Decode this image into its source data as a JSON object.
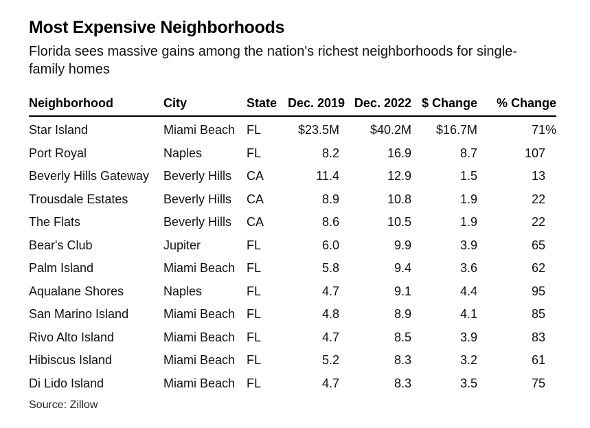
{
  "title": "Most Expensive Neighborhoods",
  "subtitle": "Florida sees massive gains among the nation's richest neighborhoods for single-family homes",
  "source": "Source: Zillow",
  "chart_data": {
    "type": "table",
    "title": "Most Expensive Neighborhoods",
    "subtitle": "Florida sees massive gains among the nation's richest neighborhoods for single-family homes",
    "columns": [
      "Neighborhood",
      "City",
      "State",
      "Dec. 2019",
      "Dec. 2022",
      "$ Change",
      "% Change"
    ],
    "rows": [
      [
        "Star Island",
        "Miami Beach",
        "FL",
        "$23.5M",
        "$40.2M",
        "$16.7M",
        "71%"
      ],
      [
        "Port Royal",
        "Naples",
        "FL",
        "8.2",
        "16.9",
        "8.7",
        "107"
      ],
      [
        "Beverly Hills Gateway",
        "Beverly Hills",
        "CA",
        "11.4",
        "12.9",
        "1.5",
        "13"
      ],
      [
        "Trousdale Estates",
        "Beverly Hills",
        "CA",
        "8.9",
        "10.8",
        "1.9",
        "22"
      ],
      [
        "The Flats",
        "Beverly Hills",
        "CA",
        "8.6",
        "10.5",
        "1.9",
        "22"
      ],
      [
        "Bear's Club",
        "Jupiter",
        "FL",
        "6.0",
        "9.9",
        "3.9",
        "65"
      ],
      [
        "Palm Island",
        "Miami Beach",
        "FL",
        "5.8",
        "9.4",
        "3.6",
        "62"
      ],
      [
        "Aqualane Shores",
        "Naples",
        "FL",
        "4.7",
        "9.1",
        "4.4",
        "95"
      ],
      [
        "San Marino Island",
        "Miami Beach",
        "FL",
        "4.8",
        "8.9",
        "4.1",
        "85"
      ],
      [
        "Rivo Alto Island",
        "Miami Beach",
        "FL",
        "4.7",
        "8.5",
        "3.9",
        "83"
      ],
      [
        "Hibiscus Island",
        "Miami Beach",
        "FL",
        "5.2",
        "8.3",
        "3.2",
        "61"
      ],
      [
        "Di Lido Island",
        "Miami Beach",
        "FL",
        "4.7",
        "8.3",
        "3.5",
        "75"
      ]
    ],
    "source": "Source: Zillow"
  }
}
